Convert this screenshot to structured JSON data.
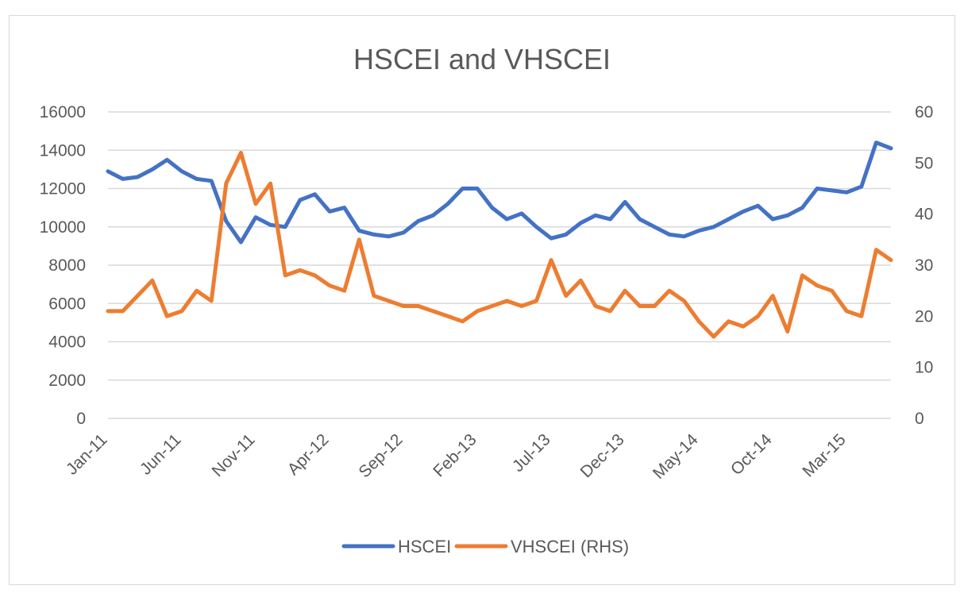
{
  "chart_data": {
    "type": "line",
    "title": "HSCEI and VHSCEI",
    "x_tick_labels": [
      "Jan-11",
      "Jun-11",
      "Nov-11",
      "Apr-12",
      "Sep-12",
      "Feb-13",
      "Jul-13",
      "Dec-13",
      "May-14",
      "Oct-14",
      "Mar-15"
    ],
    "x_range": [
      "Jan-11",
      "Jun-15"
    ],
    "y_left": {
      "range": [
        0,
        16000
      ],
      "ticks": [
        "0",
        "2000",
        "4000",
        "6000",
        "8000",
        "10000",
        "12000",
        "14000",
        "16000"
      ]
    },
    "y_right": {
      "range": [
        0,
        60
      ],
      "ticks": [
        "0",
        "10",
        "20",
        "30",
        "40",
        "50",
        "60"
      ]
    },
    "grid": true,
    "legend_position": "bottom",
    "series": [
      {
        "name": "HSCEI",
        "axis": "left",
        "color": "#4472c4",
        "points": [
          [
            "Jan-11",
            12900
          ],
          [
            "Feb-11",
            12500
          ],
          [
            "Mar-11",
            12600
          ],
          [
            "Apr-11",
            13000
          ],
          [
            "May-11",
            13500
          ],
          [
            "Jun-11",
            12900
          ],
          [
            "Jul-11",
            12500
          ],
          [
            "Aug-11",
            12400
          ],
          [
            "Sep-11",
            10300
          ],
          [
            "Oct-11",
            9200
          ],
          [
            "Nov-11",
            10500
          ],
          [
            "Dec-11",
            10100
          ],
          [
            "Jan-12",
            10000
          ],
          [
            "Feb-12",
            11400
          ],
          [
            "Mar-12",
            11700
          ],
          [
            "Apr-12",
            10800
          ],
          [
            "May-12",
            11000
          ],
          [
            "Jun-12",
            9800
          ],
          [
            "Jul-12",
            9600
          ],
          [
            "Aug-12",
            9500
          ],
          [
            "Sep-12",
            9700
          ],
          [
            "Oct-12",
            10300
          ],
          [
            "Nov-12",
            10600
          ],
          [
            "Dec-12",
            11200
          ],
          [
            "Jan-13",
            12000
          ],
          [
            "Feb-13",
            12000
          ],
          [
            "Mar-13",
            11000
          ],
          [
            "Apr-13",
            10400
          ],
          [
            "May-13",
            10700
          ],
          [
            "Jun-13",
            10000
          ],
          [
            "Jul-13",
            9400
          ],
          [
            "Aug-13",
            9600
          ],
          [
            "Sep-13",
            10200
          ],
          [
            "Oct-13",
            10600
          ],
          [
            "Nov-13",
            10400
          ],
          [
            "Dec-13",
            11300
          ],
          [
            "Jan-14",
            10400
          ],
          [
            "Feb-14",
            10000
          ],
          [
            "Mar-14",
            9600
          ],
          [
            "Apr-14",
            9500
          ],
          [
            "May-14",
            9800
          ],
          [
            "Jun-14",
            10000
          ],
          [
            "Jul-14",
            10400
          ],
          [
            "Aug-14",
            10800
          ],
          [
            "Sep-14",
            11100
          ],
          [
            "Oct-14",
            10400
          ],
          [
            "Nov-14",
            10600
          ],
          [
            "Dec-14",
            11000
          ],
          [
            "Jan-15",
            12000
          ],
          [
            "Feb-15",
            11900
          ],
          [
            "Mar-15",
            11800
          ],
          [
            "Apr-15",
            12100
          ],
          [
            "May-15",
            14400
          ],
          [
            "Jun-15",
            14100
          ]
        ]
      },
      {
        "name": "VHSCEI (RHS)",
        "axis": "right",
        "color": "#ed7d31",
        "points": [
          [
            "Jan-11",
            21
          ],
          [
            "Feb-11",
            21
          ],
          [
            "Mar-11",
            24
          ],
          [
            "Apr-11",
            27
          ],
          [
            "May-11",
            20
          ],
          [
            "Jun-11",
            21
          ],
          [
            "Jul-11",
            25
          ],
          [
            "Aug-11",
            23
          ],
          [
            "Sep-11",
            46
          ],
          [
            "Oct-11",
            52
          ],
          [
            "Nov-11",
            42
          ],
          [
            "Dec-11",
            46
          ],
          [
            "Jan-12",
            28
          ],
          [
            "Feb-12",
            29
          ],
          [
            "Mar-12",
            28
          ],
          [
            "Apr-12",
            26
          ],
          [
            "May-12",
            25
          ],
          [
            "Jun-12",
            35
          ],
          [
            "Jul-12",
            24
          ],
          [
            "Aug-12",
            23
          ],
          [
            "Sep-12",
            22
          ],
          [
            "Oct-12",
            22
          ],
          [
            "Nov-12",
            21
          ],
          [
            "Dec-12",
            20
          ],
          [
            "Jan-13",
            19
          ],
          [
            "Feb-13",
            21
          ],
          [
            "Mar-13",
            22
          ],
          [
            "Apr-13",
            23
          ],
          [
            "May-13",
            22
          ],
          [
            "Jun-13",
            23
          ],
          [
            "Jul-13",
            31
          ],
          [
            "Aug-13",
            24
          ],
          [
            "Sep-13",
            27
          ],
          [
            "Oct-13",
            22
          ],
          [
            "Nov-13",
            21
          ],
          [
            "Dec-13",
            25
          ],
          [
            "Jan-14",
            22
          ],
          [
            "Feb-14",
            22
          ],
          [
            "Mar-14",
            25
          ],
          [
            "Apr-14",
            23
          ],
          [
            "May-14",
            19
          ],
          [
            "Jun-14",
            16
          ],
          [
            "Jul-14",
            19
          ],
          [
            "Aug-14",
            18
          ],
          [
            "Sep-14",
            20
          ],
          [
            "Oct-14",
            24
          ],
          [
            "Nov-14",
            17
          ],
          [
            "Dec-14",
            28
          ],
          [
            "Jan-15",
            26
          ],
          [
            "Feb-15",
            25
          ],
          [
            "Mar-15",
            21
          ],
          [
            "Apr-15",
            20
          ],
          [
            "May-15",
            33
          ],
          [
            "Jun-15",
            31
          ]
        ]
      }
    ]
  }
}
